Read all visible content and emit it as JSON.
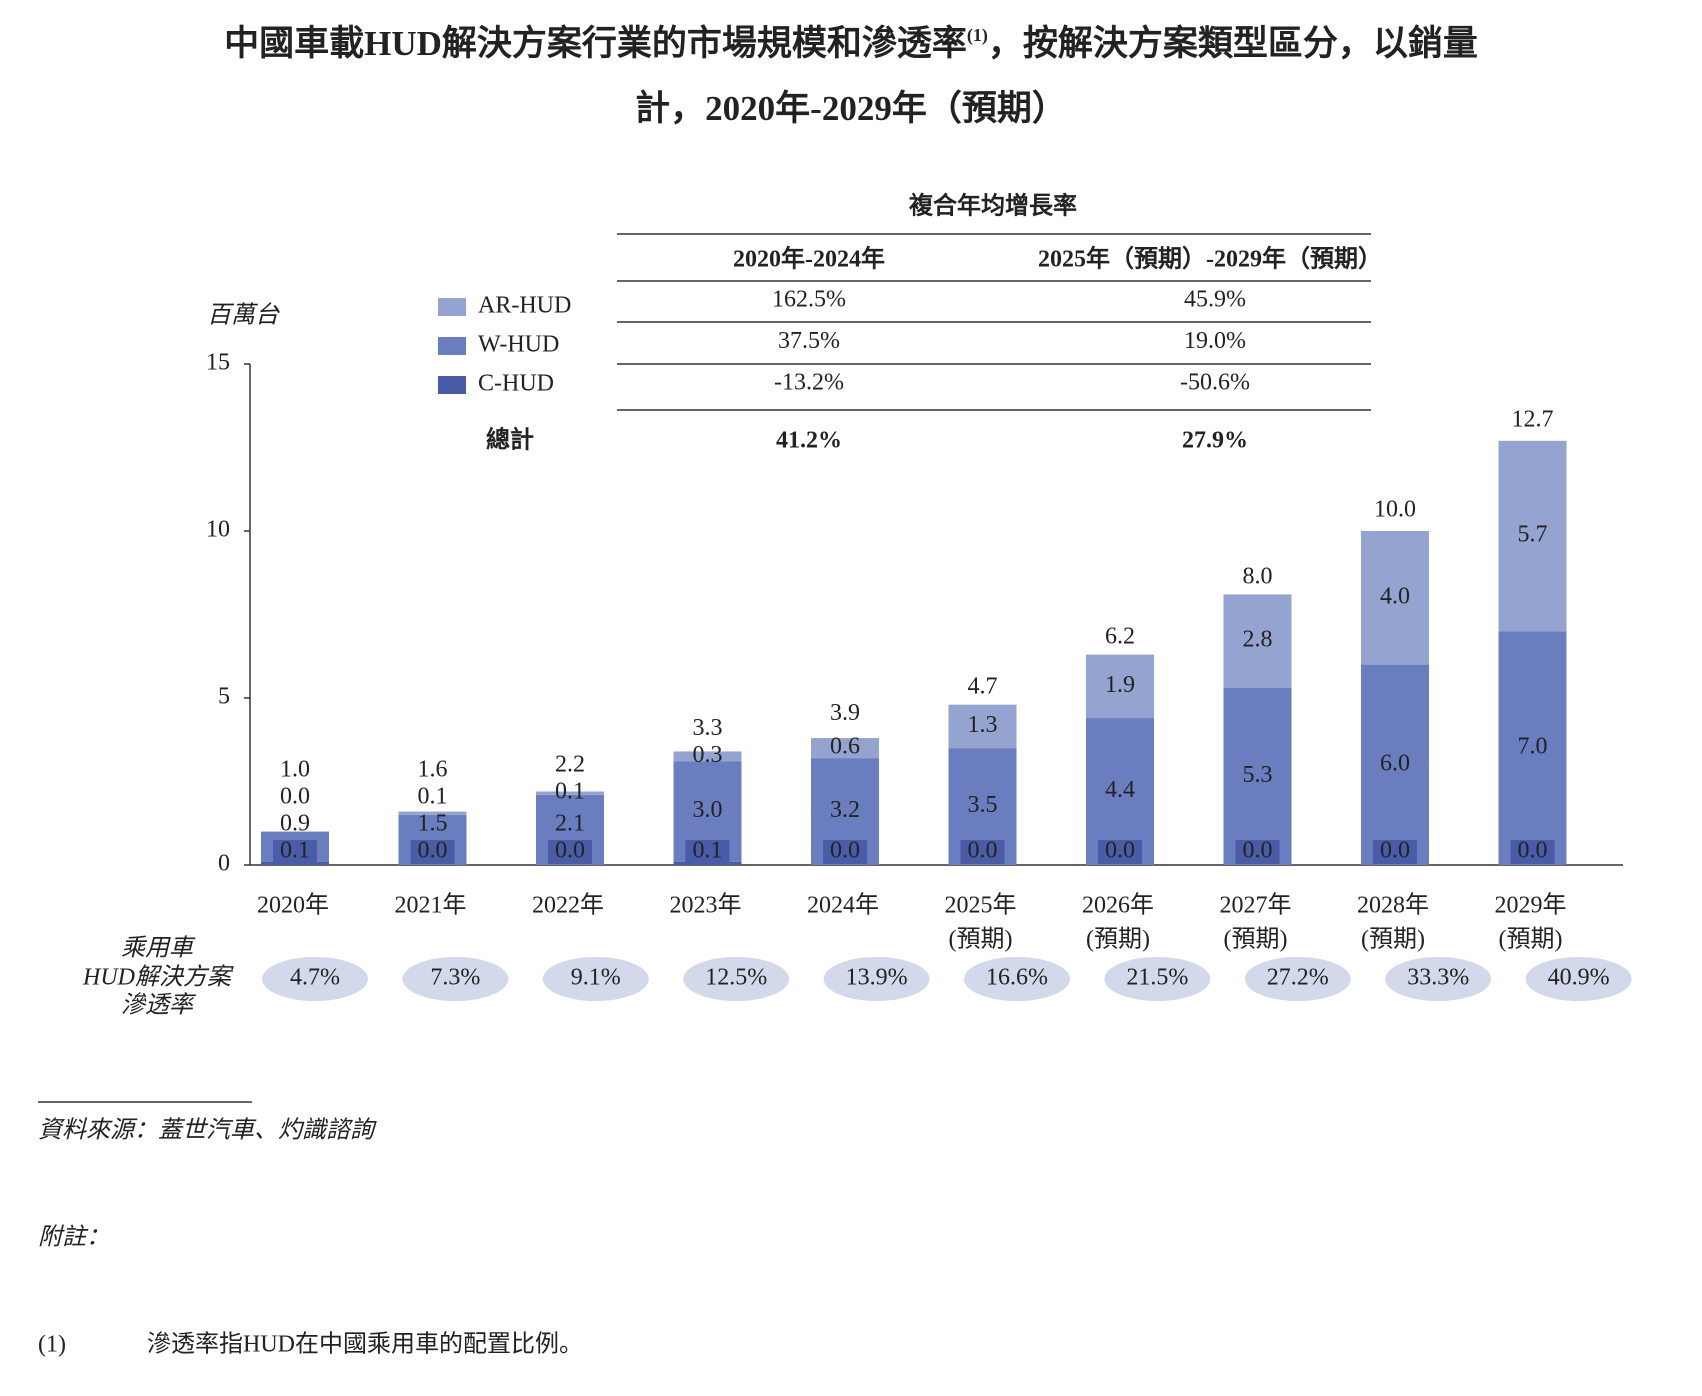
{
  "chart_data": {
    "type": "bar",
    "stacked": true,
    "title": [
      "中國車載HUD解決方案行業的市場規模和滲透率",
      "(1)",
      "，按解決方案類型區分，以銷量",
      "計，2020年-2029年（預期）"
    ],
    "y_label": "百萬台",
    "categories": [
      [
        "2020年"
      ],
      [
        "2021年"
      ],
      [
        "2022年"
      ],
      [
        "2023年"
      ],
      [
        "2024年"
      ],
      [
        "2025年",
        "(預期)"
      ],
      [
        "2026年",
        "(預期)"
      ],
      [
        "2027年",
        "(預期)"
      ],
      [
        "2028年",
        "(預期)"
      ],
      [
        "2029年",
        "(預期)"
      ]
    ],
    "series": [
      {
        "name": "C-HUD",
        "color": "#4a5ca8",
        "values": [
          0.1,
          0,
          0,
          0.1,
          0,
          0,
          0,
          0,
          0,
          0
        ],
        "value_labels": [
          "0.1",
          "0.0",
          "0.0",
          "0.1",
          "0.0",
          "0.0",
          "0.0",
          "0.0",
          "0.0",
          "0.0"
        ]
      },
      {
        "name": "W-HUD",
        "color": "#6a7dbe",
        "values": [
          0.9,
          1.5,
          2.1,
          3,
          3.2,
          3.5,
          4.4,
          5.3,
          6,
          7
        ],
        "value_labels": [
          "0.9",
          "1.5",
          "2.1",
          "3.0",
          "3.2",
          "3.5",
          "4.4",
          "5.3",
          "6.0",
          "7.0"
        ]
      },
      {
        "name": "AR-HUD",
        "color": "#95a3d0",
        "values": [
          0,
          0.1,
          0.1,
          0.3,
          0.6,
          1.3,
          1.9,
          2.8,
          4,
          5.7
        ],
        "value_labels": [
          "0.0",
          "0.1",
          "0.1",
          "0.3",
          "0.6",
          "1.3",
          "1.9",
          "2.8",
          "4.0",
          "5.7"
        ]
      }
    ],
    "totals": {
      "values": [
        1,
        1.6,
        2.2,
        3.3,
        3.9,
        4.7,
        6.2,
        8,
        10,
        12.7
      ],
      "value_labels": [
        "1.0",
        "1.6",
        "2.2",
        "3.3",
        "3.9",
        "4.7",
        "6.2",
        "8.0",
        "10.0",
        "12.7"
      ]
    },
    "ylim": [
      0,
      15
    ],
    "yticks": [
      0,
      5,
      10,
      15
    ],
    "legend": "top-left"
  },
  "cagr_table": {
    "title": "複合年均增長率",
    "columns": [
      "2020年-2024年",
      "2025年（預期）-2029年（預期）"
    ],
    "rows": [
      [
        "162.5%",
        "45.9%"
      ],
      [
        "37.5%",
        "19.0%"
      ],
      [
        "-13.2%",
        "-50.6%"
      ]
    ],
    "total": {
      "label": "總計",
      "values": [
        "41.2%",
        "27.9%"
      ]
    }
  },
  "penetration": {
    "label": [
      "乘用車",
      "HUD解決方案",
      "滲透率"
    ],
    "values": [
      "4.7%",
      "7.3%",
      "9.1%",
      "12.5%",
      "13.9%",
      "16.6%",
      "21.5%",
      "27.2%",
      "33.3%",
      "40.9%"
    ]
  },
  "source": "資料來源：蓋世汽車、灼識諮詢",
  "notes": {
    "title": "附註：",
    "items": [
      {
        "marker": "(1)",
        "text": "滲透率指HUD在中國乘用車的配置比例。"
      }
    ]
  }
}
